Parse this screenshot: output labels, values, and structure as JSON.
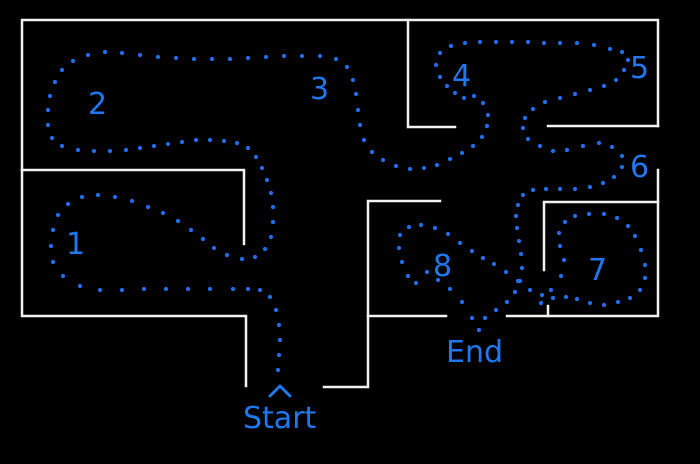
{
  "diagram": {
    "title": "",
    "rooms": [
      "1",
      "2",
      "3",
      "4",
      "5",
      "6",
      "7",
      "8"
    ],
    "start_label": "Start",
    "end_label": "End",
    "path_color": "#1e6ff0",
    "label_color": "#1f78f0",
    "wall_color": "#f2f2f2",
    "background": "#000000"
  }
}
